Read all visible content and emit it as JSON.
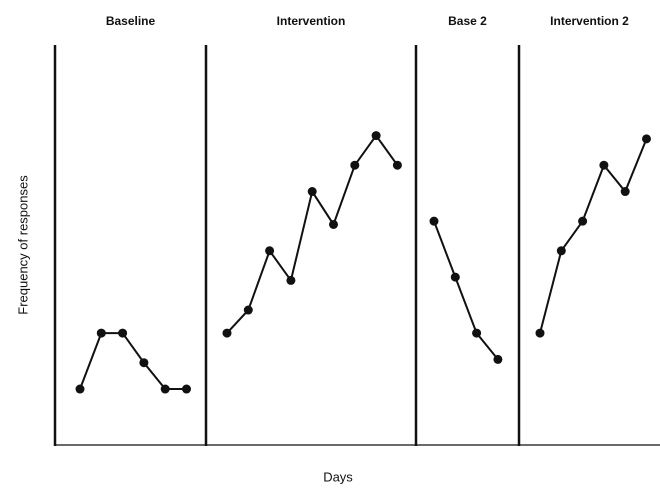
{
  "chart_data": {
    "type": "line",
    "y_label": "Frequency of responses",
    "x_label": "Days",
    "ylim": [
      0,
      12
    ],
    "color": "#111111",
    "series": [
      {
        "name": "Baseline",
        "values": [
          1.7,
          3.4,
          3.4,
          2.5,
          1.7,
          1.7
        ]
      },
      {
        "name": "Intervention",
        "values": [
          3.4,
          4.1,
          5.9,
          5.0,
          7.7,
          6.7,
          8.5,
          9.4,
          8.5
        ]
      },
      {
        "name": "Base 2",
        "values": [
          6.8,
          5.1,
          3.4,
          2.6
        ]
      },
      {
        "name": "Intervention 2",
        "values": [
          3.4,
          5.9,
          6.8,
          8.5,
          7.7,
          9.3
        ]
      }
    ]
  }
}
